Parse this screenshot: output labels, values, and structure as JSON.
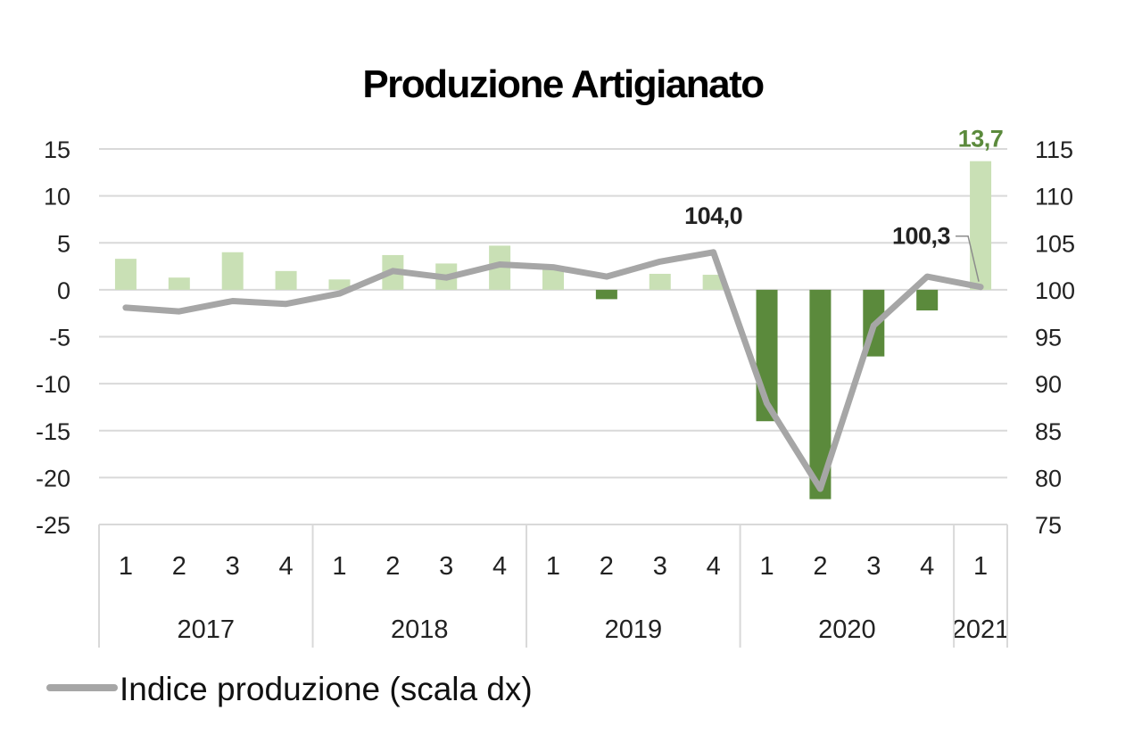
{
  "chart_data": {
    "type": "bar",
    "title": "Produzione Artigianato",
    "categories": [
      "1",
      "2",
      "3",
      "4",
      "1",
      "2",
      "3",
      "4",
      "1",
      "2",
      "3",
      "4",
      "1",
      "2",
      "3",
      "4",
      "1"
    ],
    "years": [
      {
        "label": "2017",
        "quarters": 4
      },
      {
        "label": "2018",
        "quarters": 4
      },
      {
        "label": "2019",
        "quarters": 4
      },
      {
        "label": "2020",
        "quarters": 4
      },
      {
        "label": "2021",
        "quarters": 1
      }
    ],
    "y_left": {
      "ylim": [
        -25,
        15
      ],
      "ticks": [
        15,
        10,
        5,
        0,
        -5,
        -10,
        -15,
        -20,
        -25
      ],
      "tick_labels": [
        "15",
        "10",
        "5",
        "0",
        "-5",
        "-10",
        "-15",
        "-20",
        "-25"
      ]
    },
    "y_right": {
      "ylim": [
        75,
        115
      ],
      "ticks": [
        115,
        110,
        105,
        100,
        95,
        90,
        85,
        80,
        75
      ],
      "tick_labels": [
        "115",
        "110",
        "105",
        "100",
        "95",
        "90",
        "85",
        "80",
        "75"
      ]
    },
    "series": [
      {
        "type": "bar",
        "axis": "left",
        "values": [
          3.3,
          1.3,
          4.0,
          2.0,
          1.1,
          3.7,
          2.8,
          4.7,
          2.3,
          -1.0,
          1.7,
          1.6,
          -14.0,
          -22.3,
          -7.1,
          -2.2,
          13.7
        ]
      },
      {
        "type": "line",
        "axis": "right",
        "name": "Indice produzione (scala dx)",
        "values": [
          98.1,
          97.7,
          98.8,
          98.5,
          99.6,
          102.0,
          101.3,
          102.7,
          102.4,
          101.4,
          103.0,
          104.0,
          87.9,
          78.8,
          96.2,
          101.4,
          100.3
        ]
      }
    ],
    "annotations": [
      {
        "text": "104,0",
        "series": "line",
        "index": 11
      },
      {
        "text": "100,3",
        "series": "line",
        "index": 16
      },
      {
        "text": "13,7",
        "series": "bar",
        "index": 16
      }
    ],
    "legend": {
      "position": "bottom-left",
      "label": "Indice produzione (scala dx)"
    },
    "grid": true
  },
  "colors": {
    "bar_positive": "#c9e0b5",
    "bar_negative": "#5b8a3c",
    "line": "#a6a6a6",
    "gridline": "#d9d9d9",
    "highlight_label": "#5b8a3c"
  }
}
